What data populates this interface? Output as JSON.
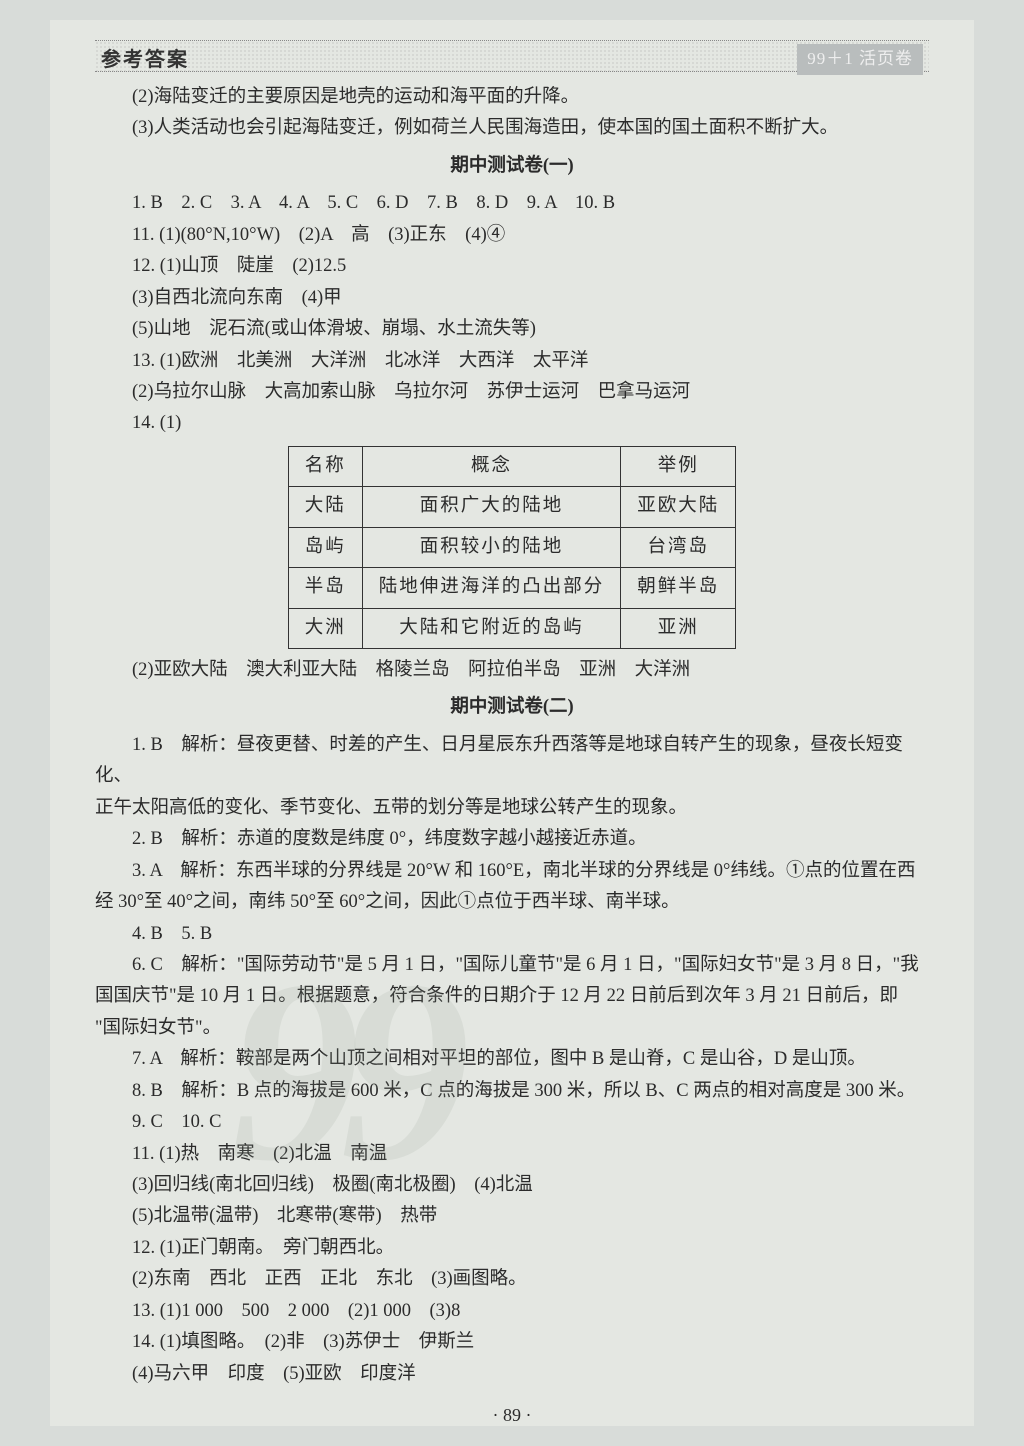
{
  "header": {
    "left": "参考答案",
    "right": "99＋1 活页卷"
  },
  "intro_lines": [
    "(2)海陆变迁的主要原因是地壳的运动和海平面的升降。",
    "(3)人类活动也会引起海陆变迁，例如荷兰人民围海造田，使本国的国土面积不断扩大。"
  ],
  "section1_title": "期中测试卷(一)",
  "section1_lines": [
    "1. B　2. C　3. A　4. A　5. C　6. D　7. B　8. D　9. A　10. B",
    "11. (1)(80°N,10°W)　(2)A　高　(3)正东　(4)④",
    "12. (1)山顶　陡崖　(2)12.5",
    "(3)自西北流向东南　(4)甲",
    "(5)山地　泥石流(或山体滑坡、崩塌、水土流失等)",
    "13. (1)欧洲　北美洲　大洋洲　北冰洋　大西洋　太平洋",
    "(2)乌拉尔山脉　大高加索山脉　乌拉尔河　苏伊士运河　巴拿马运河",
    "14. (1)"
  ],
  "table": {
    "headers": [
      "名称",
      "概念",
      "举例"
    ],
    "rows": [
      [
        "大陆",
        "面积广大的陆地",
        "亚欧大陆"
      ],
      [
        "岛屿",
        "面积较小的陆地",
        "台湾岛"
      ],
      [
        "半岛",
        "陆地伸进海洋的凸出部分",
        "朝鲜半岛"
      ],
      [
        "大洲",
        "大陆和它附近的岛屿",
        "亚洲"
      ]
    ]
  },
  "after_table": "(2)亚欧大陆　澳大利亚大陆　格陵兰岛　阿拉伯半岛　亚洲　大洋洲",
  "section2_title": "期中测试卷(二)",
  "section2_lines_a": [
    "1. B　解析：昼夜更替、时差的产生、日月星辰东升西落等是地球自转产生的现象，昼夜长短变化、",
    "正午太阳高低的变化、季节变化、五带的划分等是地球公转产生的现象。",
    "2. B　解析：赤道的度数是纬度 0°，纬度数字越小越接近赤道。",
    "3. A　解析：东西半球的分界线是 20°W 和 160°E，南北半球的分界线是 0°纬线。①点的位置在西",
    "经 30°至 40°之间，南纬 50°至 60°之间，因此①点位于西半球、南半球。",
    "4. B　5. B",
    "6. C　解析：\"国际劳动节\"是 5 月 1 日，\"国际儿童节\"是 6 月 1 日，\"国际妇女节\"是 3 月 8 日，\"我",
    "国国庆节\"是 10 月 1 日。根据题意，符合条件的日期介于 12 月 22 日前后到次年 3 月 21 日前后，即",
    "\"国际妇女节\"。",
    "7. A　解析：鞍部是两个山顶之间相对平坦的部位，图中 B 是山脊，C 是山谷，D 是山顶。",
    "8. B　解析：B 点的海拔是 600 米，C 点的海拔是 300 米，所以 B、C 两点的相对高度是 300 米。",
    "9. C　10. C",
    "11. (1)热　南寒　(2)北温　南温",
    "(3)回归线(南北回归线)　极圈(南北极圈)　(4)北温",
    "(5)北温带(温带)　北寒带(寒带)　热带",
    "12. (1)正门朝南。　旁门朝西北。",
    "(2)东南　西北　正西　正北　东北　(3)画图略。",
    "13. (1)1 000　500　2 000　(2)1 000　(3)8",
    "14. (1)填图略。　(2)非　(3)苏伊士　伊斯兰",
    "(4)马六甲　印度　(5)亚欧　印度洋"
  ],
  "pagenum": "· 89 ·",
  "watermark": "99",
  "indent_indices_a": [
    0,
    2,
    3,
    5,
    6,
    9,
    10,
    12
  ],
  "nonindent_lines1": [
    0,
    1
  ]
}
